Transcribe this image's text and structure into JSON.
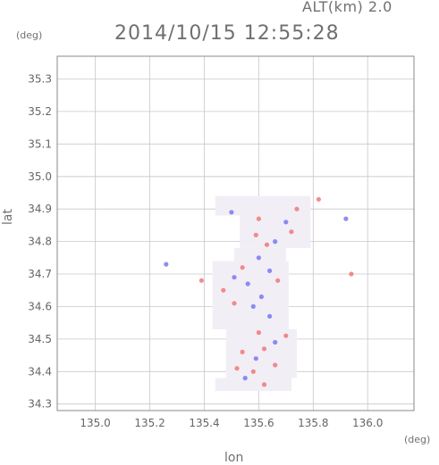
{
  "header": {
    "altitude_label": "ALT(km)  2.0",
    "timestamp": "2014/10/15 12:55:28"
  },
  "chart_data": {
    "type": "scatter",
    "title": "2014/10/15 12:55:28",
    "xlabel": "lon",
    "ylabel": "lat",
    "x_unit": "(deg)",
    "y_unit": "(deg)",
    "xlim": [
      134.86,
      136.17
    ],
    "ylim": [
      34.28,
      35.37
    ],
    "x_ticks": [
      135.0,
      135.2,
      135.4,
      135.6,
      135.8,
      136.0
    ],
    "x_tick_labels": [
      "135.0",
      "135.2",
      "135.4",
      "135.6",
      "135.8",
      "136.0"
    ],
    "y_ticks": [
      34.3,
      34.4,
      34.5,
      34.6,
      34.7,
      34.8,
      34.9,
      35.0,
      35.1,
      35.2,
      35.3
    ],
    "y_tick_labels": [
      "34.3",
      "34.4",
      "34.5",
      "34.6",
      "34.7",
      "34.8",
      "34.9",
      "35.0",
      "35.1",
      "35.2",
      "35.3"
    ],
    "grid": true,
    "colors": {
      "positive": "#f07070",
      "negative": "#7070f0",
      "neutral": "#f2eef6"
    },
    "coverage_regions": [
      {
        "lon": [
          135.44,
          135.72
        ],
        "lat": [
          34.34,
          34.38
        ]
      },
      {
        "lon": [
          135.48,
          135.74
        ],
        "lat": [
          34.38,
          34.53
        ]
      },
      {
        "lon": [
          135.43,
          135.71
        ],
        "lat": [
          34.53,
          34.74
        ]
      },
      {
        "lon": [
          135.51,
          135.7
        ],
        "lat": [
          34.74,
          34.78
        ]
      },
      {
        "lon": [
          135.53,
          135.79
        ],
        "lat": [
          34.78,
          34.88
        ]
      },
      {
        "lon": [
          135.44,
          135.79
        ],
        "lat": [
          34.88,
          34.94
        ]
      }
    ],
    "series": [
      {
        "sign": "positive",
        "points": [
          [
            135.62,
            34.36
          ],
          [
            135.58,
            34.4
          ],
          [
            135.52,
            34.41
          ],
          [
            135.66,
            34.42
          ],
          [
            135.54,
            34.46
          ],
          [
            135.62,
            34.47
          ],
          [
            135.7,
            34.51
          ],
          [
            135.6,
            34.52
          ],
          [
            135.51,
            34.61
          ],
          [
            135.47,
            34.65
          ],
          [
            135.67,
            34.68
          ],
          [
            135.54,
            34.72
          ],
          [
            135.63,
            34.79
          ],
          [
            135.59,
            34.82
          ],
          [
            135.72,
            34.83
          ],
          [
            135.6,
            34.87
          ],
          [
            135.74,
            34.9
          ],
          [
            135.82,
            34.93
          ],
          [
            135.94,
            34.7
          ],
          [
            135.39,
            34.68
          ]
        ]
      },
      {
        "sign": "negative",
        "points": [
          [
            135.55,
            34.38
          ],
          [
            135.59,
            34.44
          ],
          [
            135.66,
            34.49
          ],
          [
            135.64,
            34.57
          ],
          [
            135.58,
            34.6
          ],
          [
            135.61,
            34.63
          ],
          [
            135.56,
            34.67
          ],
          [
            135.64,
            34.71
          ],
          [
            135.51,
            34.69
          ],
          [
            135.6,
            34.75
          ],
          [
            135.66,
            34.8
          ],
          [
            135.5,
            34.89
          ],
          [
            135.7,
            34.86
          ],
          [
            135.26,
            34.73
          ],
          [
            135.92,
            34.87
          ]
        ]
      }
    ]
  }
}
